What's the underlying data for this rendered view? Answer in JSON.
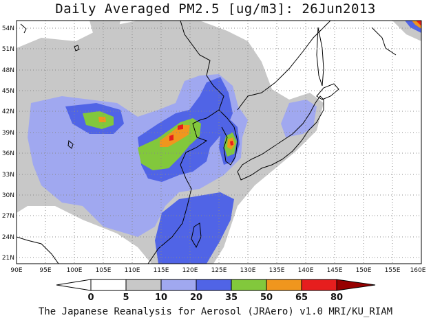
{
  "header": {
    "title": "Daily Averaged PM2.5 [ug/m3]: 26Jun2013"
  },
  "footer": {
    "credit": "The Japanese Reanalysis for Aerosol (JRAero) v1.0 MRI/KU_RIAM"
  },
  "map": {
    "lon_range": [
      90,
      160
    ],
    "lat_range": [
      20,
      55
    ],
    "lon_ticks": [
      "90E",
      "95E",
      "100E",
      "105E",
      "110E",
      "115E",
      "120E",
      "125E",
      "130E",
      "135E",
      "140E",
      "145E",
      "150E",
      "155E",
      "160E"
    ],
    "lat_ticks": [
      "21N",
      "24N",
      "27N",
      "30N",
      "33N",
      "36N",
      "39N",
      "42N",
      "45N",
      "48N",
      "51N",
      "54N"
    ]
  },
  "colorbar": {
    "levels": [
      "0",
      "5",
      "10",
      "20",
      "35",
      "50",
      "65",
      "80"
    ],
    "colors": [
      "#ffffff",
      "#c8c8c8",
      "#a0a8f0",
      "#5064e6",
      "#82c83c",
      "#f0961e",
      "#e61e1e",
      "#960000"
    ]
  }
}
